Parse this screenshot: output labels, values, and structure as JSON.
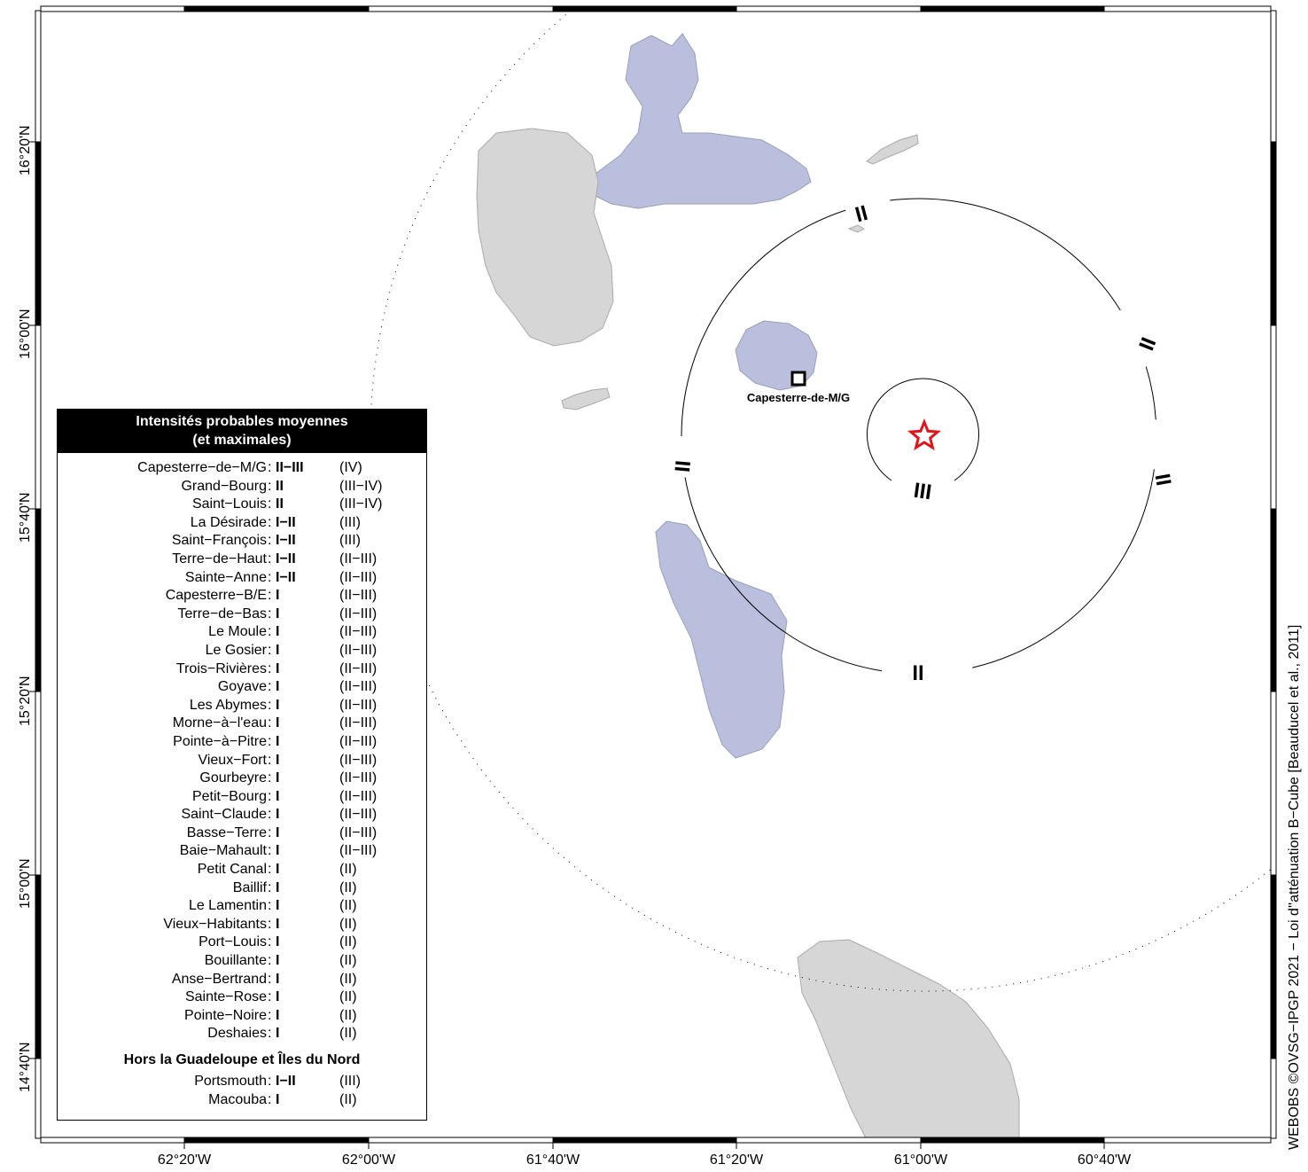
{
  "map": {
    "epicenter_color": "#e0141a",
    "land_color_guadeloupe": "#b9bfdc",
    "land_color_other": "#d6d6d6",
    "intensity_rings": [
      {
        "label": "III"
      },
      {
        "label": "II"
      }
    ],
    "city_marker": "Capesterre-de-M/G",
    "longitude_ticks": [
      "62°20'W",
      "62°00'W",
      "61°40'W",
      "61°20'W",
      "61°00'W",
      "60°40'W"
    ],
    "latitude_ticks": [
      "16°20'N",
      "16°00'N",
      "15°40'N",
      "15°20'N",
      "15°00'N",
      "14°40'N"
    ]
  },
  "legend": {
    "title_line1": "Intensités probables moyennes",
    "title_line2": "(et maximales)",
    "rows": [
      {
        "name": "Capesterre−de−M/G",
        "mean": "II−III",
        "max": "(IV)"
      },
      {
        "name": "Grand−Bourg",
        "mean": "II",
        "max": "(III−IV)"
      },
      {
        "name": "Saint−Louis",
        "mean": "II",
        "max": "(III−IV)"
      },
      {
        "name": "La Désirade",
        "mean": "I−II",
        "max": "(III)"
      },
      {
        "name": "Saint−François",
        "mean": "I−II",
        "max": "(III)"
      },
      {
        "name": "Terre−de−Haut",
        "mean": "I−II",
        "max": "(II−III)"
      },
      {
        "name": "Sainte−Anne",
        "mean": "I−II",
        "max": "(II−III)"
      },
      {
        "name": "Capesterre−B/E",
        "mean": "I",
        "max": "(II−III)"
      },
      {
        "name": "Terre−de−Bas",
        "mean": "I",
        "max": "(II−III)"
      },
      {
        "name": "Le Moule",
        "mean": "I",
        "max": "(II−III)"
      },
      {
        "name": "Le Gosier",
        "mean": "I",
        "max": "(II−III)"
      },
      {
        "name": "Trois−Rivières",
        "mean": "I",
        "max": "(II−III)"
      },
      {
        "name": "Goyave",
        "mean": "I",
        "max": "(II−III)"
      },
      {
        "name": "Les Abymes",
        "mean": "I",
        "max": "(II−III)"
      },
      {
        "name": "Morne−à−l'eau",
        "mean": "I",
        "max": "(II−III)"
      },
      {
        "name": "Pointe−à−Pitre",
        "mean": "I",
        "max": "(II−III)"
      },
      {
        "name": "Vieux−Fort",
        "mean": "I",
        "max": "(II−III)"
      },
      {
        "name": "Gourbeyre",
        "mean": "I",
        "max": "(II−III)"
      },
      {
        "name": "Petit−Bourg",
        "mean": "I",
        "max": "(II−III)"
      },
      {
        "name": "Saint−Claude",
        "mean": "I",
        "max": "(II−III)"
      },
      {
        "name": "Basse−Terre",
        "mean": "I",
        "max": "(II−III)"
      },
      {
        "name": "Baie−Mahault",
        "mean": "I",
        "max": "(II−III)"
      },
      {
        "name": "Petit Canal",
        "mean": "I",
        "max": "(II)"
      },
      {
        "name": "Baillif",
        "mean": "I",
        "max": "(II)"
      },
      {
        "name": "Le Lamentin",
        "mean": "I",
        "max": "(II)"
      },
      {
        "name": "Vieux−Habitants",
        "mean": "I",
        "max": "(II)"
      },
      {
        "name": "Port−Louis",
        "mean": "I",
        "max": "(II)"
      },
      {
        "name": "Bouillante",
        "mean": "I",
        "max": "(II)"
      },
      {
        "name": "Anse−Bertrand",
        "mean": "I",
        "max": "(II)"
      },
      {
        "name": "Sainte−Rose",
        "mean": "I",
        "max": "(II)"
      },
      {
        "name": "Pointe−Noire",
        "mean": "I",
        "max": "(II)"
      },
      {
        "name": "Deshaies",
        "mean": "I",
        "max": "(II)"
      }
    ],
    "outside_title": "Hors la Guadeloupe et Îles du Nord",
    "outside_rows": [
      {
        "name": "Portsmouth",
        "mean": "I−II",
        "max": "(III)"
      },
      {
        "name": "Macouba",
        "mean": "I",
        "max": "(II)"
      }
    ]
  },
  "credit": "WEBOBS ©OVSG−IPGP 2021 − Loi d''atténuation B−Cube [Beauducel et al., 2011]"
}
